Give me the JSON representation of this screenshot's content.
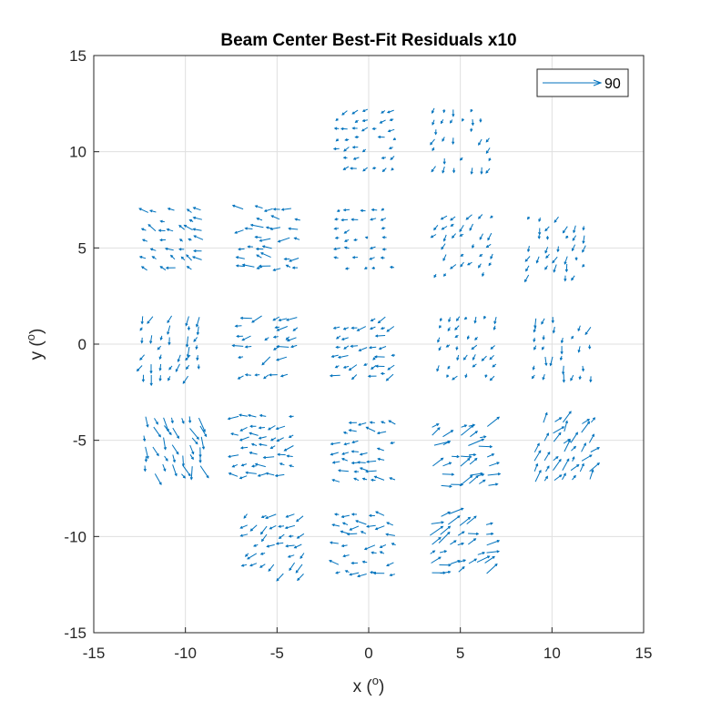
{
  "chart_data": {
    "type": "quiver",
    "title": "Beam Center Best-Fit Residuals x10",
    "xlabel": {
      "base": "x (",
      "sup": "o",
      "end": ")"
    },
    "ylabel": {
      "base": "y (",
      "sup": "o",
      "end": ")"
    },
    "xlim": [
      -15,
      15
    ],
    "ylim": [
      -15,
      15
    ],
    "xticks": [
      -15,
      -10,
      -5,
      0,
      5,
      10,
      15
    ],
    "yticks": [
      -15,
      -10,
      -5,
      0,
      5,
      10,
      15
    ],
    "xtick_labels": [
      "-15",
      "-10",
      "-5",
      "0",
      "5",
      "10",
      "15"
    ],
    "ytick_labels": [
      "-15",
      "-10",
      "-5",
      "0",
      "5",
      "10",
      "15"
    ],
    "grid": true,
    "legend": {
      "label": "90",
      "position": "top-right",
      "arrow_length": 3.2
    },
    "series_color": "#0072BD",
    "clusters": [
      {
        "center": [
          -10.5,
          5.5
        ],
        "angle": 160,
        "length": 0.45
      },
      {
        "center": [
          -5.2,
          5.6
        ],
        "angle": 175,
        "length": 0.6
      },
      {
        "center": [
          0.0,
          5.6
        ],
        "angle": 190,
        "length": 0.3
      },
      {
        "center": [
          5.3,
          5.3
        ],
        "angle": 230,
        "length": 0.35
      },
      {
        "center": [
          10.4,
          5.2
        ],
        "angle": 250,
        "length": 0.35
      },
      {
        "center": [
          -10.7,
          0.0
        ],
        "angle": 250,
        "length": 0.45
      },
      {
        "center": [
          -5.3,
          0.0
        ],
        "angle": 200,
        "length": 0.55
      },
      {
        "center": [
          0.0,
          0.0
        ],
        "angle": 200,
        "length": 0.45
      },
      {
        "center": [
          5.5,
          0.0
        ],
        "angle": 235,
        "length": 0.3
      },
      {
        "center": [
          10.7,
          0.0
        ],
        "angle": 255,
        "length": 0.4
      },
      {
        "center": [
          -10.6,
          -5.2
        ],
        "angle": 290,
        "length": 0.65
      },
      {
        "center": [
          -5.5,
          -5.2
        ],
        "angle": 185,
        "length": 0.5
      },
      {
        "center": [
          0.0,
          -5.5
        ],
        "angle": 175,
        "length": 0.5
      },
      {
        "center": [
          5.1,
          -5.7
        ],
        "angle": 20,
        "length": 0.75
      },
      {
        "center": [
          10.7,
          -5.5
        ],
        "angle": 50,
        "length": 0.6
      },
      {
        "center": [
          -5.0,
          -10.3
        ],
        "angle": 210,
        "length": 0.5
      },
      {
        "center": [
          0.0,
          -10.3
        ],
        "angle": 180,
        "length": 0.5
      },
      {
        "center": [
          5.0,
          -10.3
        ],
        "angle": 20,
        "length": 0.7
      },
      {
        "center": [
          0.0,
          10.8
        ],
        "angle": 200,
        "length": 0.3
      },
      {
        "center": [
          5.2,
          10.8
        ],
        "angle": 250,
        "length": 0.3
      }
    ]
  }
}
